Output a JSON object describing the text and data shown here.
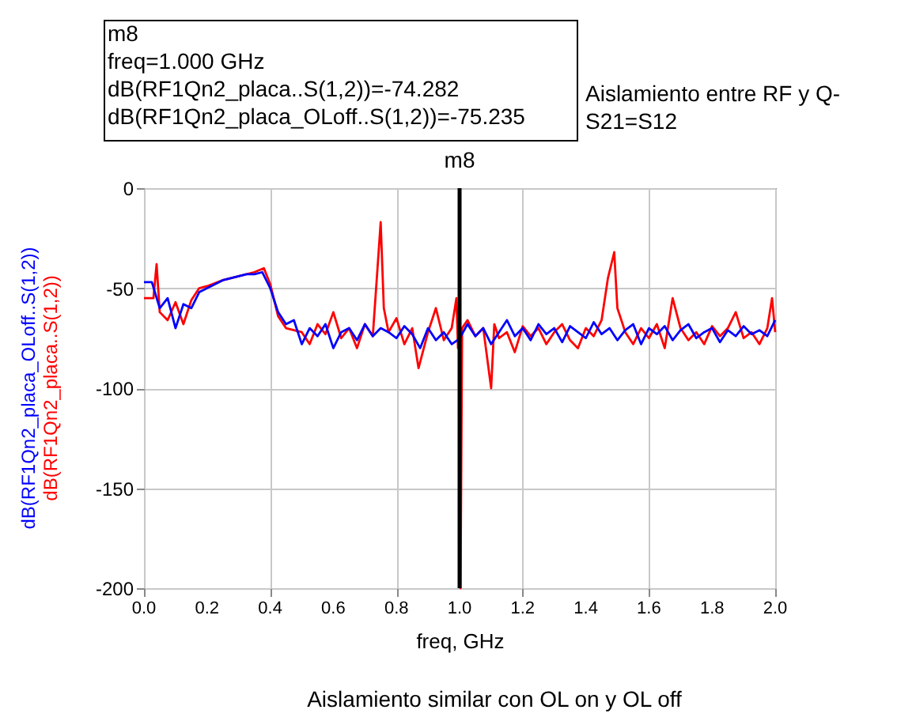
{
  "chart_data": {
    "type": "line",
    "xlabel": "freq, GHz",
    "annotations": [
      "m8\nfreq=1.000 GHz\ndB(RF1Qn2_placa..S(1,2))=-74.282\ndB(RF1Qn2_placa_OLoff..S(1,2))=-75.235",
      "Aislamiento entre RF y Q-\nS21=S12",
      "Aislamiento similar con OL on y OL off"
    ],
    "xlim": [
      0,
      2
    ],
    "ylim": [
      -200,
      0
    ],
    "xticks": [
      {
        "value": 0,
        "label": "0.0"
      },
      {
        "value": 0.2,
        "label": "0.2"
      },
      {
        "value": 0.4,
        "label": "0.4"
      },
      {
        "value": 0.6,
        "label": "0.6"
      },
      {
        "value": 0.8,
        "label": "0.8"
      },
      {
        "value": 1,
        "label": "1.0"
      },
      {
        "value": 1.2,
        "label": "1.2"
      },
      {
        "value": 1.4,
        "label": "1.4"
      },
      {
        "value": 1.6,
        "label": "1.6"
      },
      {
        "value": 1.8,
        "label": "1.8"
      },
      {
        "value": 2,
        "label": "2.0"
      }
    ],
    "yticks": [
      -200,
      -150,
      -100,
      -50,
      0
    ],
    "grid": true,
    "legend": false,
    "line_style": "solid",
    "marker": "none",
    "ref_lines": [
      {
        "axis": "x",
        "value": 1.0,
        "label": "m8",
        "color": "#000000"
      }
    ],
    "series": [
      {
        "name": "dB(RF1Qn2_placa_OLoff..S(1,2))",
        "color": "#0000ff",
        "x": [
          0,
          0.025,
          0.05,
          0.075,
          0.1,
          0.125,
          0.15,
          0.175,
          0.2,
          0.225,
          0.25,
          0.275,
          0.3,
          0.325,
          0.35,
          0.375,
          0.4,
          0.425,
          0.45,
          0.475,
          0.5,
          0.525,
          0.55,
          0.575,
          0.6,
          0.625,
          0.65,
          0.675,
          0.7,
          0.725,
          0.75,
          0.775,
          0.8,
          0.825,
          0.85,
          0.875,
          0.9,
          0.925,
          0.95,
          0.975,
          1.0,
          1.025,
          1.05,
          1.075,
          1.1,
          1.125,
          1.15,
          1.175,
          1.2,
          1.225,
          1.25,
          1.275,
          1.3,
          1.325,
          1.35,
          1.375,
          1.4,
          1.425,
          1.45,
          1.475,
          1.5,
          1.525,
          1.55,
          1.575,
          1.6,
          1.625,
          1.65,
          1.675,
          1.7,
          1.725,
          1.75,
          1.775,
          1.8,
          1.825,
          1.85,
          1.875,
          1.9,
          1.925,
          1.95,
          1.975,
          2.0
        ],
        "values": [
          -47,
          -47,
          -60,
          -55,
          -70,
          -58,
          -60,
          -52,
          -50,
          -48,
          -46,
          -45,
          -44,
          -43,
          -43,
          -42,
          -50,
          -62,
          -68,
          -66,
          -78,
          -70,
          -74,
          -68,
          -80,
          -72,
          -70,
          -76,
          -68,
          -74,
          -70,
          -72,
          -75,
          -69,
          -73,
          -80,
          -70,
          -76,
          -72,
          -78,
          -75.235,
          -68,
          -74,
          -70,
          -78,
          -72,
          -66,
          -74,
          -70,
          -76,
          -68,
          -73,
          -70,
          -77,
          -69,
          -72,
          -75,
          -67,
          -73,
          -70,
          -76,
          -71,
          -68,
          -78,
          -70,
          -73,
          -69,
          -76,
          -71,
          -68,
          -75,
          -72,
          -70,
          -77,
          -71,
          -74,
          -69,
          -73,
          -71,
          -74,
          -66
        ]
      },
      {
        "name": "dB(RF1Qn2_placa..S(1,2))",
        "color": "#ff0000",
        "x": [
          0,
          0.03,
          0.04,
          0.05,
          0.075,
          0.1,
          0.125,
          0.15,
          0.175,
          0.2,
          0.25,
          0.3,
          0.35,
          0.38,
          0.4,
          0.425,
          0.45,
          0.5,
          0.525,
          0.55,
          0.575,
          0.6,
          0.625,
          0.65,
          0.675,
          0.7,
          0.725,
          0.74,
          0.75,
          0.76,
          0.775,
          0.8,
          0.825,
          0.85,
          0.87,
          0.9,
          0.925,
          0.95,
          0.975,
          0.99,
          0.995,
          1.0,
          1.003,
          1.008,
          1.025,
          1.05,
          1.075,
          1.1,
          1.11,
          1.125,
          1.15,
          1.175,
          1.2,
          1.225,
          1.25,
          1.275,
          1.3,
          1.325,
          1.35,
          1.375,
          1.4,
          1.425,
          1.45,
          1.47,
          1.49,
          1.5,
          1.525,
          1.55,
          1.575,
          1.6,
          1.625,
          1.65,
          1.675,
          1.7,
          1.725,
          1.75,
          1.775,
          1.8,
          1.825,
          1.85,
          1.875,
          1.9,
          1.925,
          1.95,
          1.975,
          1.99,
          2.0
        ],
        "values": [
          -55,
          -55,
          -38,
          -62,
          -66,
          -57,
          -68,
          -56,
          -50,
          -49,
          -46,
          -44,
          -42,
          -40,
          -48,
          -64,
          -70,
          -72,
          -78,
          -68,
          -73,
          -62,
          -75,
          -70,
          -80,
          -68,
          -74,
          -40,
          -17,
          -60,
          -72,
          -65,
          -78,
          -70,
          -90,
          -72,
          -60,
          -76,
          -70,
          -55,
          -80,
          -74.282,
          -200,
          -70,
          -66,
          -74,
          -70,
          -100,
          -68,
          -75,
          -72,
          -82,
          -69,
          -74,
          -70,
          -78,
          -72,
          -68,
          -76,
          -80,
          -70,
          -74,
          -66,
          -45,
          -32,
          -60,
          -72,
          -78,
          -70,
          -75,
          -68,
          -80,
          -55,
          -70,
          -76,
          -72,
          -78,
          -69,
          -74,
          -70,
          -62,
          -75,
          -72,
          -78,
          -70,
          -55,
          -72
        ]
      }
    ]
  }
}
